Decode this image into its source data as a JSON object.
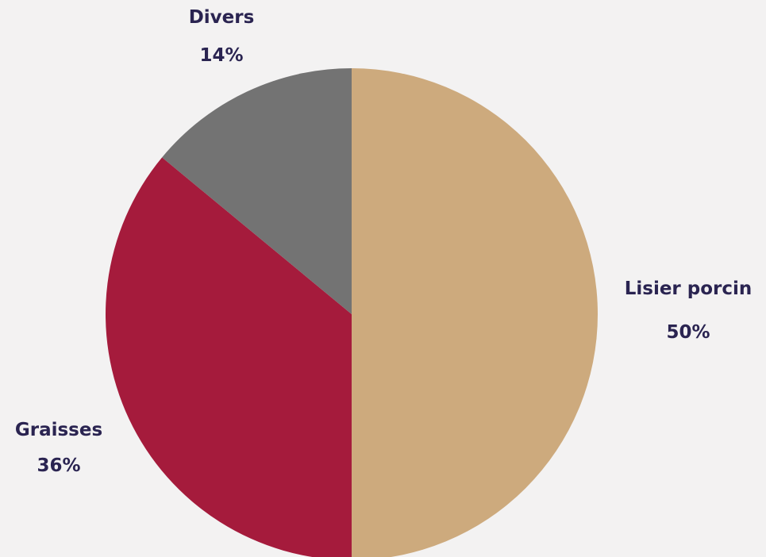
{
  "chart_data": {
    "type": "pie",
    "title": "",
    "slices": [
      {
        "label": "Lisier porcin",
        "value": 50,
        "value_label": "50%",
        "color": "#cdaa7d"
      },
      {
        "label": "Graisses",
        "value": 36,
        "value_label": "36%",
        "color": "#a51b3c"
      },
      {
        "label": "Divers",
        "value": 14,
        "value_label": "14%",
        "color": "#737373"
      }
    ],
    "start_angle": "12 o'clock",
    "direction": "clockwise",
    "label_color": "#2a2451",
    "background": "#f3f2f2"
  }
}
